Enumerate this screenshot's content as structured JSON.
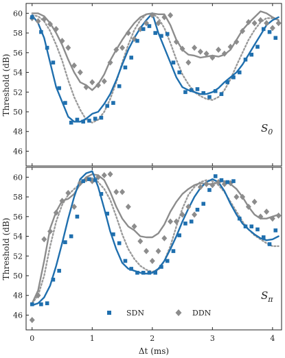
{
  "chart_data": {
    "type": "line",
    "xlabel": "Δt (ms)",
    "ylabel": "Threshold (dB)",
    "xlim": [
      -0.1,
      4.15
    ],
    "xticks": [
      0,
      1,
      2,
      3,
      4
    ],
    "grid": false,
    "legend": {
      "placement": "bottom",
      "entries": [
        "SDN",
        "DDN"
      ]
    },
    "colors": {
      "SDN": "#1f6fae",
      "DDN": "#8c8c8c",
      "dotted": "#9a9a9a"
    },
    "panels": [
      {
        "annotation": "S",
        "annotation_sub": "0",
        "ylim": [
          44.5,
          61
        ],
        "yticks": [
          46,
          48,
          50,
          52,
          54,
          56,
          58,
          60
        ],
        "series": [
          {
            "name": "SDN",
            "kind": "line-solid-blue",
            "x": [
              0,
              0.1,
              0.2,
              0.3,
              0.4,
              0.5,
              0.6,
              0.7,
              0.8,
              0.9,
              1.0,
              1.1,
              1.2,
              1.3,
              1.4,
              1.5,
              1.6,
              1.7,
              1.8,
              1.9,
              2.0,
              2.1,
              2.2,
              2.3,
              2.4,
              2.5,
              2.6,
              2.7,
              2.8,
              2.9,
              3.0,
              3.1,
              3.2,
              3.3,
              3.4,
              3.5,
              3.6,
              3.7,
              3.8,
              3.9,
              4.0,
              4.1
            ],
            "y": [
              59.8,
              59.0,
              57.5,
              55.0,
              52.5,
              51.0,
              49.5,
              49.0,
              49.0,
              49.3,
              49.8,
              50.0,
              50.8,
              51.8,
              53.2,
              54.8,
              56.3,
              57.5,
              58.5,
              59.3,
              60.0,
              58.0,
              56.5,
              55.0,
              53.5,
              52.5,
              52.2,
              52.0,
              51.8,
              51.8,
              52.0,
              52.4,
              53.0,
              53.5,
              54.0,
              54.8,
              55.8,
              56.8,
              57.8,
              58.8,
              59.3,
              59.6
            ]
          },
          {
            "name": "DDN",
            "kind": "line-solid-gray",
            "x": [
              0,
              0.1,
              0.2,
              0.3,
              0.4,
              0.5,
              0.6,
              0.7,
              0.8,
              0.9,
              1.0,
              1.1,
              1.2,
              1.3,
              1.4,
              1.5,
              1.6,
              1.7,
              1.8,
              1.9,
              2.0,
              2.1,
              2.2,
              2.3,
              2.4,
              2.5,
              2.6,
              2.7,
              2.8,
              2.9,
              3.0,
              3.1,
              3.2,
              3.3,
              3.4,
              3.5,
              3.6,
              3.7,
              3.8,
              3.9,
              4.0,
              4.1
            ],
            "y": [
              60.0,
              60.0,
              59.7,
              59.0,
              58.0,
              56.8,
              55.3,
              54.0,
              53.0,
              52.7,
              52.2,
              52.8,
              53.8,
              55.2,
              56.3,
              57.3,
              58.2,
              59.0,
              59.6,
              59.9,
              60.0,
              59.9,
              59.9,
              58.8,
              57.3,
              56.3,
              55.8,
              55.7,
              55.5,
              55.6,
              55.7,
              55.6,
              55.8,
              56.3,
              57.3,
              58.3,
              59.0,
              59.6,
              60.2,
              60.0,
              59.6,
              59.3
            ]
          },
          {
            "name": "",
            "kind": "line-dotted-gray",
            "x": [
              0,
              0.1,
              0.2,
              0.3,
              0.4,
              0.5,
              0.6,
              0.7,
              0.8,
              0.9,
              1.0,
              1.1,
              1.2,
              1.3,
              1.4,
              1.5,
              1.6,
              1.7,
              1.8,
              1.9,
              2.0,
              2.1,
              2.2,
              2.3,
              2.4,
              2.5,
              2.6,
              2.7,
              2.8,
              2.9,
              3.0,
              3.1,
              3.2,
              3.3,
              3.4,
              3.5,
              3.6,
              3.7,
              3.8,
              3.9,
              4.0,
              4.1
            ],
            "y": [
              59.8,
              59.7,
              59.2,
              58.2,
              56.8,
              55.2,
              53.2,
              51.5,
              50.2,
              49.2,
              48.9,
              49.2,
              50.0,
              51.3,
              53.0,
              55.0,
              56.8,
              58.3,
              59.3,
              59.9,
              60.0,
              59.5,
              58.5,
              57.0,
              55.3,
              53.8,
              52.8,
              52.0,
              51.6,
              51.3,
              51.2,
              51.5,
              52.2,
              53.3,
              54.7,
              56.0,
              57.3,
              58.3,
              59.1,
              59.5,
              59.5,
              59.3
            ]
          },
          {
            "name": "SDN",
            "kind": "points-square-blue",
            "x": [
              0,
              0.15,
              0.25,
              0.35,
              0.45,
              0.55,
              0.65,
              0.75,
              0.85,
              0.95,
              1.05,
              1.15,
              1.25,
              1.35,
              1.45,
              1.55,
              1.65,
              1.75,
              1.85,
              1.95,
              2.05,
              2.15,
              2.25,
              2.35,
              2.45,
              2.55,
              2.65,
              2.75,
              2.85,
              2.95,
              3.05,
              3.15,
              3.25,
              3.35,
              3.45,
              3.55,
              3.65,
              3.75,
              3.85,
              3.95,
              4.05
            ],
            "y": [
              59.6,
              58.1,
              56.5,
              55.0,
              52.4,
              50.9,
              48.9,
              49.2,
              49.0,
              49.1,
              49.3,
              49.4,
              50.6,
              50.9,
              52.6,
              54.5,
              55.5,
              57.2,
              58.4,
              58.7,
              58.0,
              57.7,
              57.9,
              55.0,
              54.0,
              52.0,
              52.2,
              52.3,
              51.9,
              51.5,
              52.1,
              51.8,
              53.0,
              53.5,
              54.0,
              55.3,
              55.8,
              56.6,
              58.4,
              58.1,
              57.5
            ]
          },
          {
            "name": "DDN",
            "kind": "points-diamond-gray",
            "x": [
              0,
              0.1,
              0.2,
              0.3,
              0.4,
              0.5,
              0.6,
              0.7,
              0.8,
              0.9,
              1.0,
              1.1,
              1.2,
              1.3,
              1.4,
              1.5,
              1.6,
              1.7,
              1.8,
              1.9,
              2.0,
              2.1,
              2.2,
              2.3,
              2.4,
              2.5,
              2.6,
              2.7,
              2.8,
              2.9,
              3.0,
              3.1,
              3.2,
              3.3,
              3.4,
              3.5,
              3.6,
              3.7,
              3.8,
              3.9,
              4.0,
              4.1
            ],
            "y": [
              59.5,
              59.2,
              59.4,
              58.9,
              58.4,
              57.2,
              56.5,
              54.7,
              54.0,
              52.5,
              53.0,
              52.7,
              53.1,
              55.0,
              56.3,
              56.5,
              58.0,
              57.4,
              58.4,
              59.0,
              59.8,
              59.0,
              59.6,
              59.8,
              57.1,
              56.4,
              55.0,
              56.5,
              56.1,
              55.9,
              55.5,
              56.3,
              55.9,
              56.6,
              57.1,
              58.2,
              59.1,
              59.0,
              59.3,
              59.0,
              58.5,
              59.0
            ]
          }
        ]
      },
      {
        "annotation": "S",
        "annotation_sub": "π",
        "ylim": [
          44.5,
          61
        ],
        "yticks": [
          46,
          48,
          50,
          52,
          54,
          56,
          58,
          60
        ],
        "series": [
          {
            "name": "SDN",
            "kind": "line-solid-blue",
            "x": [
              0,
              0.1,
              0.2,
              0.3,
              0.4,
              0.5,
              0.6,
              0.7,
              0.8,
              0.9,
              1.0,
              1.1,
              1.2,
              1.3,
              1.4,
              1.5,
              1.6,
              1.7,
              1.8,
              1.9,
              2.0,
              2.1,
              2.2,
              2.3,
              2.4,
              2.5,
              2.6,
              2.7,
              2.8,
              2.9,
              3.0,
              3.1,
              3.2,
              3.3,
              3.4,
              3.5,
              3.6,
              3.7,
              3.8,
              3.9,
              4.0,
              4.1
            ],
            "y": [
              47.0,
              47.2,
              47.8,
              49.0,
              51.0,
              53.3,
              55.8,
              58.0,
              59.8,
              60.4,
              60.6,
              59.0,
              56.8,
              54.5,
              52.7,
              51.3,
              50.7,
              50.5,
              50.3,
              50.2,
              50.3,
              50.7,
              51.5,
              52.7,
              54.0,
              55.5,
              56.8,
              58.0,
              58.9,
              59.5,
              59.8,
              59.5,
              58.6,
              57.3,
              56.2,
              55.3,
              54.7,
              54.2,
              53.8,
              53.6,
              53.7,
              54.0
            ]
          },
          {
            "name": "DDN",
            "kind": "line-solid-gray",
            "x": [
              0,
              0.1,
              0.2,
              0.3,
              0.4,
              0.5,
              0.6,
              0.7,
              0.8,
              0.9,
              1.0,
              1.1,
              1.2,
              1.3,
              1.4,
              1.5,
              1.6,
              1.7,
              1.8,
              1.9,
              2.0,
              2.1,
              2.2,
              2.3,
              2.4,
              2.5,
              2.6,
              2.7,
              2.8,
              2.9,
              3.0,
              3.1,
              3.2,
              3.3,
              3.4,
              3.5,
              3.6,
              3.7,
              3.8,
              3.9,
              4.0,
              4.1
            ],
            "y": [
              47.2,
              48.5,
              51.5,
              54.8,
              56.5,
              57.6,
              57.8,
              58.3,
              59.3,
              60.0,
              60.3,
              60.2,
              59.7,
              58.5,
              57.0,
              55.8,
              55.0,
              54.6,
              54.0,
              53.9,
              53.9,
              54.3,
              55.2,
              56.5,
              57.5,
              58.3,
              58.8,
              59.2,
              59.4,
              59.3,
              59.3,
              59.5,
              59.6,
              59.3,
              58.8,
              58.0,
              57.0,
              56.2,
              55.8,
              55.8,
              56.0,
              56.2
            ]
          },
          {
            "name": "",
            "kind": "line-dotted-gray",
            "x": [
              0,
              0.1,
              0.2,
              0.3,
              0.4,
              0.5,
              0.6,
              0.7,
              0.8,
              0.9,
              1.0,
              1.1,
              1.2,
              1.3,
              1.4,
              1.5,
              1.6,
              1.7,
              1.8,
              1.9,
              2.0,
              2.1,
              2.2,
              2.3,
              2.4,
              2.5,
              2.6,
              2.7,
              2.8,
              2.9,
              3.0,
              3.1,
              3.2,
              3.3,
              3.4,
              3.5,
              3.6,
              3.7,
              3.8,
              3.9,
              4.0,
              4.1
            ],
            "y": [
              47.2,
              48.0,
              50.0,
              53.0,
              55.5,
              57.2,
              58.2,
              58.8,
              59.3,
              59.7,
              59.9,
              59.5,
              58.8,
              57.7,
              56.0,
              54.2,
              52.7,
              51.7,
              51.0,
              50.6,
              50.4,
              50.6,
              51.5,
              53.0,
              55.0,
              56.8,
              58.2,
              59.0,
              59.5,
              59.7,
              59.6,
              59.2,
              58.5,
              57.5,
              56.5,
              55.5,
              54.7,
              54.1,
              53.7,
              53.3,
              53.0,
              53.0
            ]
          },
          {
            "name": "SDN",
            "kind": "points-square-blue",
            "x": [
              0,
              0.15,
              0.25,
              0.35,
              0.45,
              0.55,
              0.65,
              0.75,
              0.85,
              0.95,
              1.05,
              1.15,
              1.25,
              1.35,
              1.45,
              1.55,
              1.65,
              1.75,
              1.85,
              1.95,
              2.05,
              2.15,
              2.25,
              2.35,
              2.45,
              2.55,
              2.65,
              2.75,
              2.85,
              2.95,
              3.05,
              3.15,
              3.25,
              3.35,
              3.45,
              3.55,
              3.65,
              3.75,
              3.85,
              3.95,
              4.05
            ],
            "y": [
              47.1,
              47.1,
              47.2,
              49.6,
              50.5,
              53.4,
              54.0,
              56.0,
              59.6,
              59.8,
              59.7,
              58.3,
              56.3,
              54.2,
              53.3,
              51.5,
              50.7,
              50.3,
              50.3,
              50.3,
              50.3,
              50.9,
              51.5,
              52.5,
              54.1,
              55.3,
              55.5,
              56.7,
              57.3,
              58.7,
              60.1,
              59.7,
              59.5,
              59.6,
              55.8,
              55.0,
              55.0,
              54.7,
              53.9,
              53.2,
              54.6
            ]
          },
          {
            "name": "DDN",
            "kind": "points-diamond-gray",
            "x": [
              0,
              0.1,
              0.2,
              0.3,
              0.4,
              0.5,
              0.6,
              0.7,
              0.8,
              0.9,
              1.0,
              1.1,
              1.2,
              1.3,
              1.4,
              1.5,
              1.6,
              1.7,
              1.8,
              1.9,
              2.0,
              2.1,
              2.2,
              2.3,
              2.4,
              2.5,
              2.6,
              2.7,
              2.8,
              2.9,
              3.0,
              3.1,
              3.2,
              3.3,
              3.4,
              3.5,
              3.6,
              3.7,
              3.8,
              3.9,
              4.0,
              4.1
            ],
            "y": [
              45.5,
              48.0,
              53.7,
              54.5,
              56.4,
              57.6,
              58.4,
              57.0,
              59.4,
              59.8,
              59.6,
              60.0,
              60.2,
              60.3,
              58.5,
              58.5,
              57.0,
              55.0,
              53.5,
              52.5,
              51.5,
              52.5,
              53.8,
              55.5,
              55.5,
              56.2,
              57.0,
              56.2,
              59.0,
              59.3,
              59.2,
              59.5,
              59.3,
              59.4,
              58.0,
              58.0,
              57.0,
              57.5,
              56.0,
              56.5,
              55.8,
              56.1
            ]
          }
        ]
      }
    ],
    "legend_labels": {
      "sdn": "SDN",
      "ddn": "DDN"
    }
  }
}
